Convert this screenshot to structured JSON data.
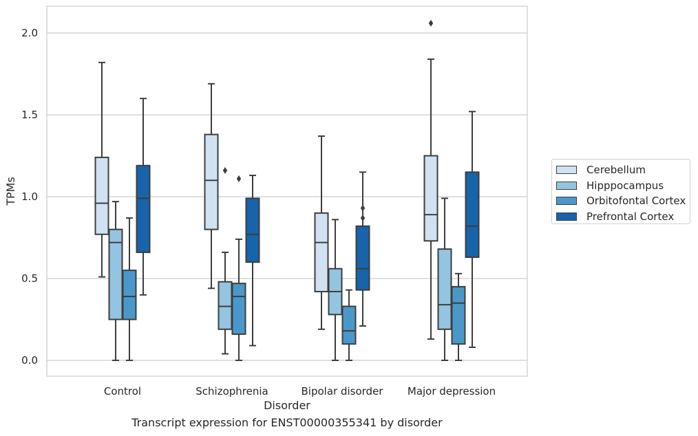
{
  "chart_data": {
    "type": "box",
    "title": "",
    "xlabel": "Disorder",
    "ylabel": "TPMs",
    "caption": "Transcript expression for ENST00000355341 by disorder",
    "ylim": [
      -0.1,
      2.17
    ],
    "yticks": [
      0.0,
      0.5,
      1.0,
      1.5,
      2.0
    ],
    "ytick_labels": [
      "0.0",
      "0.5",
      "1.0",
      "1.5",
      "2.0"
    ],
    "grid": "horizontal",
    "legend_position": "right",
    "categories": [
      "Control",
      "Schizophrenia",
      "Bipolar disorder",
      "Major depression"
    ],
    "series": [
      {
        "name": "Cerebellum",
        "color": "#d0e1f2",
        "boxes": [
          {
            "whisker_low": 0.51,
            "q1": 0.77,
            "median": 0.96,
            "q3": 1.24,
            "whisker_high": 1.82,
            "outliers": []
          },
          {
            "whisker_low": 0.44,
            "q1": 0.8,
            "median": 1.1,
            "q3": 1.38,
            "whisker_high": 1.69,
            "outliers": []
          },
          {
            "whisker_low": 0.19,
            "q1": 0.42,
            "median": 0.72,
            "q3": 0.9,
            "whisker_high": 1.37,
            "outliers": []
          },
          {
            "whisker_low": 0.13,
            "q1": 0.73,
            "median": 0.89,
            "q3": 1.25,
            "whisker_high": 1.84,
            "outliers": [
              2.06
            ]
          }
        ]
      },
      {
        "name": "Hipppocampus",
        "color": "#94c4df",
        "boxes": [
          {
            "whisker_low": 0.0,
            "q1": 0.25,
            "median": 0.72,
            "q3": 0.8,
            "whisker_high": 0.97,
            "outliers": []
          },
          {
            "whisker_low": 0.04,
            "q1": 0.19,
            "median": 0.33,
            "q3": 0.48,
            "whisker_high": 0.66,
            "outliers": [
              1.16
            ]
          },
          {
            "whisker_low": 0.0,
            "q1": 0.28,
            "median": 0.42,
            "q3": 0.56,
            "whisker_high": 0.86,
            "outliers": []
          },
          {
            "whisker_low": 0.0,
            "q1": 0.19,
            "median": 0.34,
            "q3": 0.68,
            "whisker_high": 0.99,
            "outliers": []
          }
        ]
      },
      {
        "name": "Orbitofontal Cortex",
        "color": "#4a98c9",
        "boxes": [
          {
            "whisker_low": 0.0,
            "q1": 0.25,
            "median": 0.39,
            "q3": 0.55,
            "whisker_high": 0.87,
            "outliers": []
          },
          {
            "whisker_low": 0.0,
            "q1": 0.16,
            "median": 0.39,
            "q3": 0.47,
            "whisker_high": 0.74,
            "outliers": [
              1.11
            ]
          },
          {
            "whisker_low": 0.0,
            "q1": 0.1,
            "median": 0.18,
            "q3": 0.33,
            "whisker_high": 0.43,
            "outliers": []
          },
          {
            "whisker_low": 0.0,
            "q1": 0.1,
            "median": 0.35,
            "q3": 0.45,
            "whisker_high": 0.53,
            "outliers": []
          }
        ]
      },
      {
        "name": "Prefrontal Cortex",
        "color": "#1764ab",
        "boxes": [
          {
            "whisker_low": 0.4,
            "q1": 0.66,
            "median": 0.99,
            "q3": 1.19,
            "whisker_high": 1.6,
            "outliers": []
          },
          {
            "whisker_low": 0.09,
            "q1": 0.6,
            "median": 0.77,
            "q3": 0.99,
            "whisker_high": 1.13,
            "outliers": []
          },
          {
            "whisker_low": 0.21,
            "q1": 0.43,
            "median": 0.56,
            "q3": 0.82,
            "whisker_high": 1.15,
            "outliers": [
              0.87,
              0.93
            ]
          },
          {
            "whisker_low": 0.08,
            "q1": 0.63,
            "median": 0.82,
            "q3": 1.15,
            "whisker_high": 1.52,
            "outliers": []
          }
        ]
      }
    ]
  }
}
